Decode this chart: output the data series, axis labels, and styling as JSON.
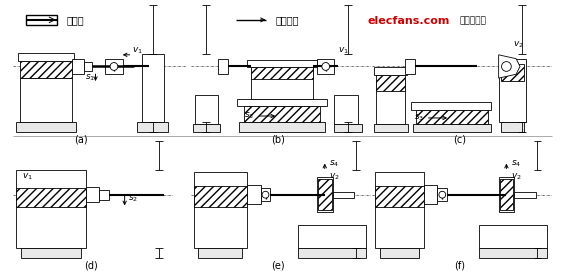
{
  "background_color": "#ffffff",
  "labels": [
    "(a)",
    "(b)",
    "(c)",
    "(d)",
    "(e)",
    "(f)"
  ],
  "legend_main": "主运动",
  "legend_feed": "进给运动",
  "watermark": "elecfans.com",
  "watermark_sub": "电子发烧友",
  "watermark_color": "#cc0000",
  "text_color": "#111111"
}
